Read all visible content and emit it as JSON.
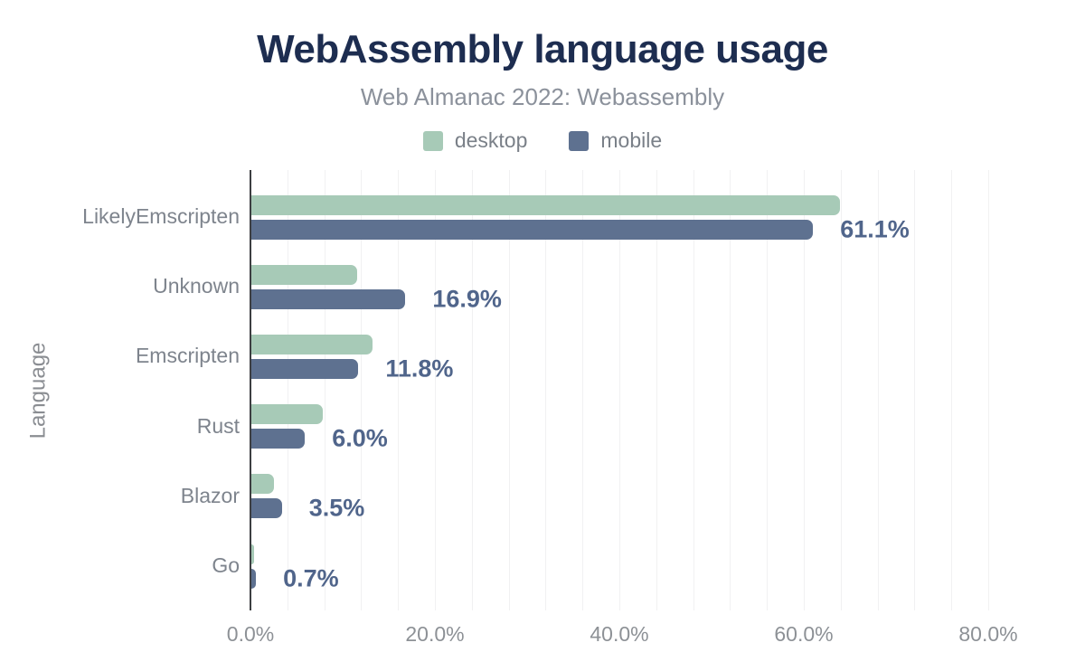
{
  "chart_data": {
    "type": "bar",
    "orientation": "horizontal",
    "title": "WebAssembly language usage",
    "subtitle": "Web Almanac 2022: Webassembly",
    "ylabel": "Language",
    "xlabel": "",
    "categories": [
      "LikelyEmscripten",
      "Unknown",
      "Emscripten",
      "Rust",
      "Blazor",
      "Go"
    ],
    "series": [
      {
        "name": "desktop",
        "color": "#a7cab7",
        "values": [
          64.0,
          11.7,
          13.3,
          7.9,
          2.6,
          0.5
        ]
      },
      {
        "name": "mobile",
        "color": "#5e7190",
        "values": [
          61.1,
          16.9,
          11.8,
          6.0,
          3.5,
          0.7
        ]
      }
    ],
    "data_labels": {
      "labeled_series": "mobile",
      "texts": [
        "61.1%",
        "16.9%",
        "11.8%",
        "6.0%",
        "3.5%",
        "0.7%"
      ],
      "color": "#50658b"
    },
    "x_ticks": [
      "0.0%",
      "20.0%",
      "40.0%",
      "60.0%",
      "80.0%"
    ],
    "x_tick_values": [
      0,
      20,
      40,
      60,
      80
    ],
    "xlim": [
      0,
      85.6
    ],
    "grid": {
      "minor_step_percent": 4,
      "max_percent": 80,
      "color": "#f1f1f2"
    },
    "legend_position": "top"
  },
  "colors": {
    "background": "#ffffff",
    "title": "#1d2d50",
    "subtitle": "#8b919b",
    "axis_line": "#3d3f42",
    "tick_text": "#8d9196",
    "category_text": "#7e848d",
    "value_label": "#50658b"
  }
}
